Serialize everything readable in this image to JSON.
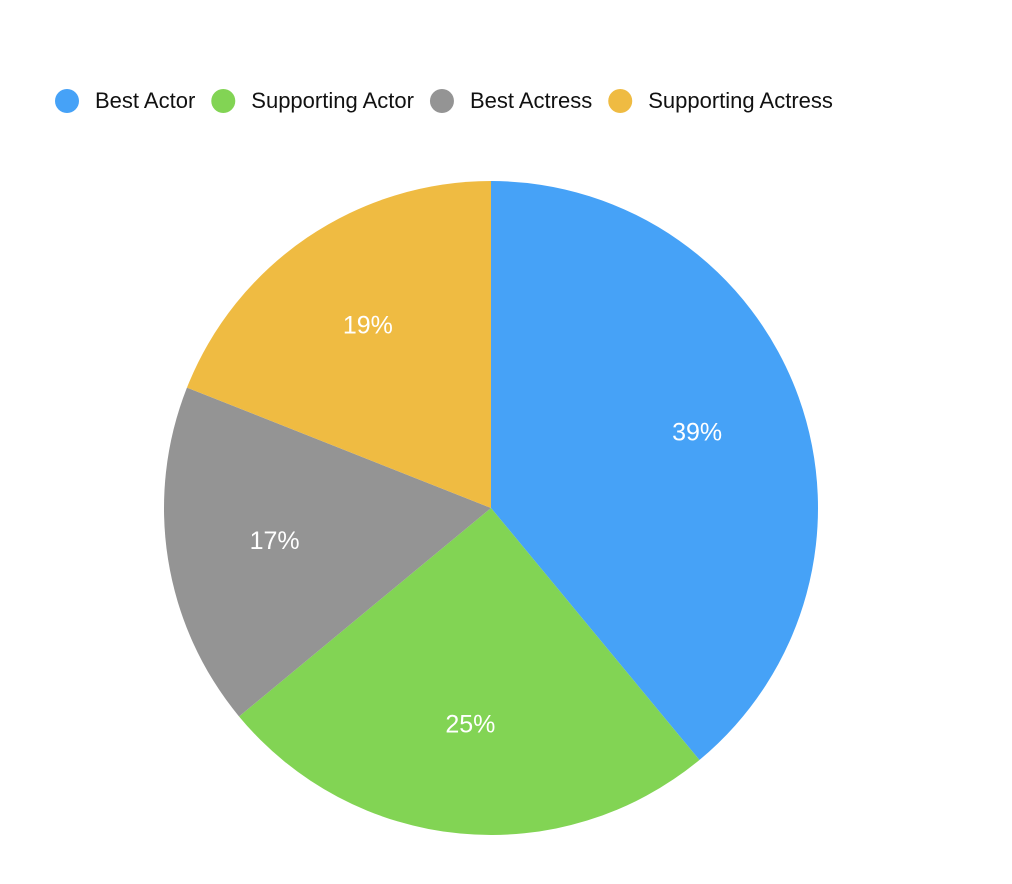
{
  "chart_data": {
    "type": "pie",
    "categories": [
      "Best Actor",
      "Supporting Actor",
      "Best Actress",
      "Supporting Actress"
    ],
    "values": [
      39,
      25,
      17,
      19
    ],
    "value_labels": [
      "39%",
      "25%",
      "17%",
      "19%"
    ],
    "colors": [
      "#46a2f7",
      "#82d454",
      "#949494",
      "#efbb42"
    ],
    "legend": "top-left"
  }
}
